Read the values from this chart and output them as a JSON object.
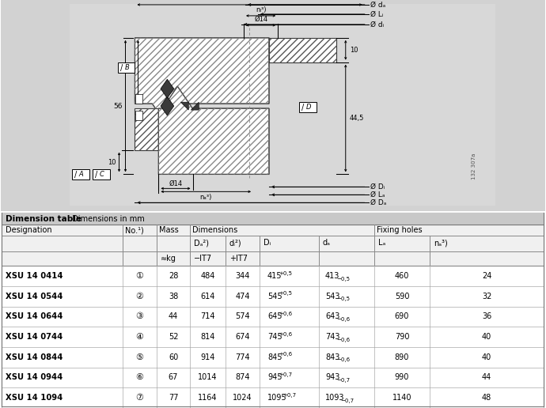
{
  "drawing_bg": "#d2d2d2",
  "white": "#ffffff",
  "black": "#000000",
  "table_title_bg": "#c8c8c8",
  "table_header_bg": "#f0f0f0",
  "title_bold": "Dimension table",
  "title_rest": " · Dimensions in mm",
  "col_headers_l1": [
    "Designation",
    "No.¹)",
    "Mass",
    "Dimensions",
    "Fixing holes"
  ],
  "dim_span_cols": [
    "Dₐ²)",
    "dᵢ²)",
    "Dᵢ",
    "dₐ",
    "Lₐ",
    "nₐ³)"
  ],
  "unit_row": [
    "≈kg",
    "-IT7",
    "+IT7"
  ],
  "rows": [
    [
      "XSU 14 0414",
      "①",
      "28",
      "484",
      "344",
      "415",
      "+0,5",
      "413",
      "−0,5",
      "460",
      "24"
    ],
    [
      "XSU 14 0544",
      "②",
      "38",
      "614",
      "474",
      "545",
      "+0,5",
      "543",
      "−0,5",
      "590",
      "32"
    ],
    [
      "XSU 14 0644",
      "③",
      "44",
      "714",
      "574",
      "645",
      "+0,6",
      "643",
      "−0,6",
      "690",
      "36"
    ],
    [
      "XSU 14 0744",
      "④",
      "52",
      "814",
      "674",
      "745",
      "+0,6",
      "743",
      "−0,6",
      "790",
      "40"
    ],
    [
      "XSU 14 0844",
      "⑤",
      "60",
      "914",
      "774",
      "845",
      "+0,6",
      "843",
      "−0,6",
      "890",
      "40"
    ],
    [
      "XSU 14 0944",
      "⑥",
      "67",
      "1014",
      "874",
      "945",
      "+0,7",
      "943",
      "−0,7",
      "990",
      "44"
    ],
    [
      "XSU 14 1094",
      "⑦",
      "77",
      "1164",
      "1024",
      "1095",
      "+0,7",
      "1093",
      "−0,7",
      "1140",
      "48"
    ]
  ]
}
